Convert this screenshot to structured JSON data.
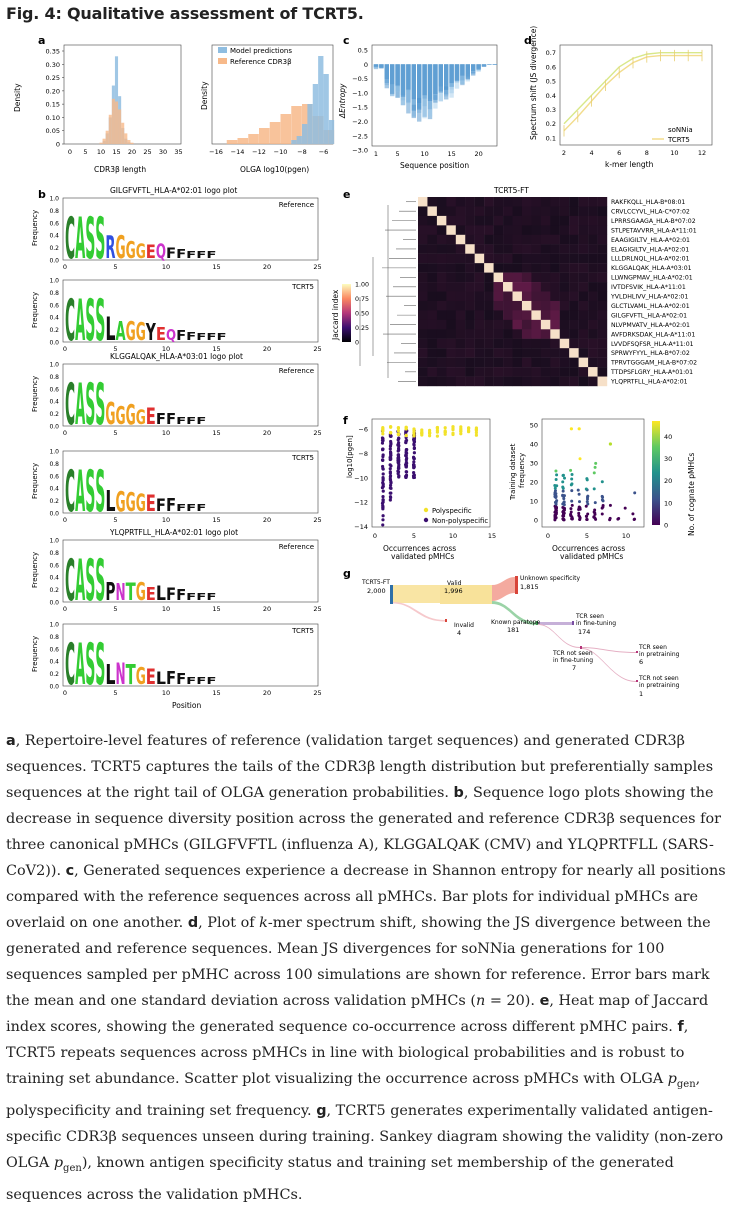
{
  "fig_title": "Fig. 4: Qualitative assessment of TCRT5.",
  "panel_labels": {
    "a": "a",
    "b": "b",
    "c": "c",
    "d": "d",
    "e": "e",
    "f": "f",
    "g": "g"
  },
  "colors": {
    "reference": "#f7b98a",
    "model": "#8fbde0",
    "heat_dark": "#180d1e",
    "sonnia": "#d9e88a",
    "tcrt5_line": "#f2dc8c",
    "viridis_high": "#f2e22a"
  },
  "panel_a": {
    "hist1": {
      "xlabel": "CDR3β length",
      "ylabel": "Density",
      "xticks": [
        "0",
        "5",
        "10",
        "15",
        "20",
        "25",
        "30",
        "35"
      ],
      "yticks": [
        "0",
        "0.05",
        "0.10",
        "0.15",
        "0.20",
        "0.25",
        "0.30",
        "0.35"
      ]
    },
    "hist2": {
      "xlabel": "OLGA log10(pgen)",
      "ylabel": "Density",
      "xticks": [
        "−16",
        "−14",
        "−12",
        "−10",
        "−8",
        "−6"
      ],
      "legend": [
        "Model predictions",
        "Reference CDR3β"
      ]
    }
  },
  "panel_c": {
    "ylabel": "ΔEntropy",
    "xlabel": "Sequence position",
    "yticks": [
      "0.5",
      "0",
      "−0.5",
      "−1.0",
      "−1.5",
      "−2.0",
      "−2.5",
      "−3.0"
    ],
    "xticks": [
      "1",
      "5",
      "10",
      "15",
      "20"
    ]
  },
  "panel_d": {
    "ylabel": "Spectrum shift (JS divergence)",
    "xlabel": "k-mer length",
    "yticks": [
      "0.1",
      "0.2",
      "0.3",
      "0.4",
      "0.5",
      "0.6",
      "0.7"
    ],
    "xticks": [
      "2",
      "4",
      "6",
      "8",
      "10",
      "12"
    ],
    "legend": [
      "soNNia",
      "TCRT5"
    ]
  },
  "panel_b": {
    "logos": [
      {
        "title": "GILGFVFTL_HLA-A*02:01 logo plot",
        "tag": "Reference",
        "seq": "CASSRGGGEQFF"
      },
      {
        "tag": "TCRT5",
        "seq": "CASSLAGGYEQFF"
      },
      {
        "title": "KLGGALQAK_HLA-A*03:01 logo plot",
        "tag": "Reference",
        "seq": "CASSGGGGEFF"
      },
      {
        "tag": "TCRT5",
        "seq": "CASSLGGGEFF"
      },
      {
        "title": "YLQPRTFLL_HLA-A*02:01 logo plot",
        "tag": "Reference",
        "seq": "CASSPNTGELFF"
      },
      {
        "tag": "TCRT5",
        "seq": "CASSLNTGELFF"
      }
    ],
    "ylabel": "Frequency",
    "yticks": [
      "0.0",
      "0.2",
      "0.4",
      "0.6",
      "0.8",
      "1.0"
    ],
    "xticks": [
      "0",
      "5",
      "10",
      "15",
      "20",
      "25"
    ],
    "xlabel": "Position"
  },
  "panel_e": {
    "title": "TCRT5-FT",
    "colorbar_label": "Jaccard index",
    "colorbar_ticks": [
      "1.00",
      "0.75",
      "0.50",
      "0.25",
      "0"
    ],
    "rows": [
      "RAKFKQLL_HLA-B*08:01",
      "CRVLCCYVL_HLA-C*07:02",
      "LPRRSGAAGA_HLA-B*07:02",
      "STLPETAVVRR_HLA-A*11:01",
      "EAAGIGILTV_HLA-A*02:01",
      "ELAGIGILTV_HLA-A*02:01",
      "LLLDRLNQL_HLA-A*02:01",
      "KLGGALQAK_HLA-A*03:01",
      "LLWNGPMAV_HLA-A*02:01",
      "IVTDFSVIK_HLA-A*11:01",
      "YVLDHLIVV_HLA-A*02:01",
      "GLCTLVAML_HLA-A*02:01",
      "GILGFVFTL_HLA-A*02:01",
      "NLVPMVATV_HLA-A*02:01",
      "AVFDRKSDAK_HLA-A*11:01",
      "LVVDFSQFSR_HLA-A*11:01",
      "SPRWYFYYL_HLA-B*07:02",
      "TPRVTGGGAM_HLA-B*07:02",
      "TTDPSFLGRY_HLA-A*01:01",
      "YLQPRTFLL_HLA-A*02:01"
    ]
  },
  "panel_f": {
    "left": {
      "ylabel": "log10[pgen]",
      "yticks": [
        "−6",
        "−8",
        "−10",
        "−12",
        "−14"
      ],
      "xticks": [
        "0",
        "5",
        "10",
        "15"
      ],
      "xlabel": "Occurrences across validated pMHCs",
      "legend": [
        "Polyspecific",
        "Non-polyspecific"
      ]
    },
    "right": {
      "ylabel": "Training dataset frequency",
      "yticks": [
        "0",
        "10",
        "20",
        "30",
        "40",
        "50"
      ],
      "xticks": [
        "0",
        "5",
        "10"
      ],
      "xlabel": "Occurrences across validated pMHCs",
      "colorbar_label": "No. of cognate pMHCs",
      "colorbar_ticks": [
        "40",
        "30",
        "20",
        "10",
        "0"
      ]
    }
  },
  "panel_g": {
    "nodes": [
      {
        "label": "TCRT5-FT",
        "value": "2,000"
      },
      {
        "label": "Valid",
        "value": "1,996"
      },
      {
        "label": "Unknown specificity",
        "value": "1,815"
      },
      {
        "label": "Invalid",
        "value": "4"
      },
      {
        "label": "Known paratope",
        "value": "181"
      },
      {
        "label": "TCR seen in fine-tuning",
        "value": "174"
      },
      {
        "label": "TCR not seen in fine-tuning",
        "value": "7"
      },
      {
        "label": "TCR seen in pretraining",
        "value": "6"
      },
      {
        "label": "TCR not seen in pretraining",
        "value": "1"
      }
    ]
  },
  "caption": {
    "a_label": "a",
    "a": ", Repertoire-level features of reference (validation target sequences) and generated CDR3β sequences. TCRT5 captures the tails of the CDR3β length distribution but preferentially samples sequences at the right tail of OLGA generation probabilities. ",
    "b_label": "b",
    "b": ", Sequence logo plots showing the decrease in sequence diversity position across the generated and reference CDR3β sequences for three canonical pMHCs (GILGFVFTL (influenza A), KLGGALQAK (CMV) and YLQPRTFLL (SARS-CoV2)). ",
    "c_label": "c",
    "c": ", Generated sequences experience a decrease in Shannon entropy for nearly all positions compared with the reference sequences across all pMHCs. Bar plots for individual pMHCs are overlaid on one another. ",
    "d_label": "d",
    "d1": ", Plot of ",
    "d_k": "k",
    "d2": "-mer spectrum shift, showing the JS divergence between the generated and reference sequences. Mean JS divergences for soNNia generations for 100 sequences sampled per pMHC across 100 simulations are shown for reference. Error bars mark the mean and one standard deviation across validation pMHCs (",
    "d_n": "n",
    "d3": " = 20). ",
    "e_label": "e",
    "e": ", Heat map of Jaccard index scores, showing the generated sequence co-occurrence across different pMHC pairs. ",
    "f_label": "f",
    "f1": ", TCRT5 repeats sequences across pMHCs in line with biological probabilities and is robust to training set abundance. Scatter plot visualizing the occurrence across pMHCs with OLGA ",
    "f_p": "p",
    "f_gen": "gen",
    "f2": ", polyspecificity and training set frequency. ",
    "g_label": "g",
    "g1": ", TCRT5 generates experimentally validated antigen-specific CDR3β sequences unseen during training. Sankey diagram showing the validity (non-zero OLGA ",
    "g_p": "p",
    "g_gen": "gen",
    "g2": "), known antigen specificity status and training set membership of the generated sequences across the validation pMHCs."
  }
}
